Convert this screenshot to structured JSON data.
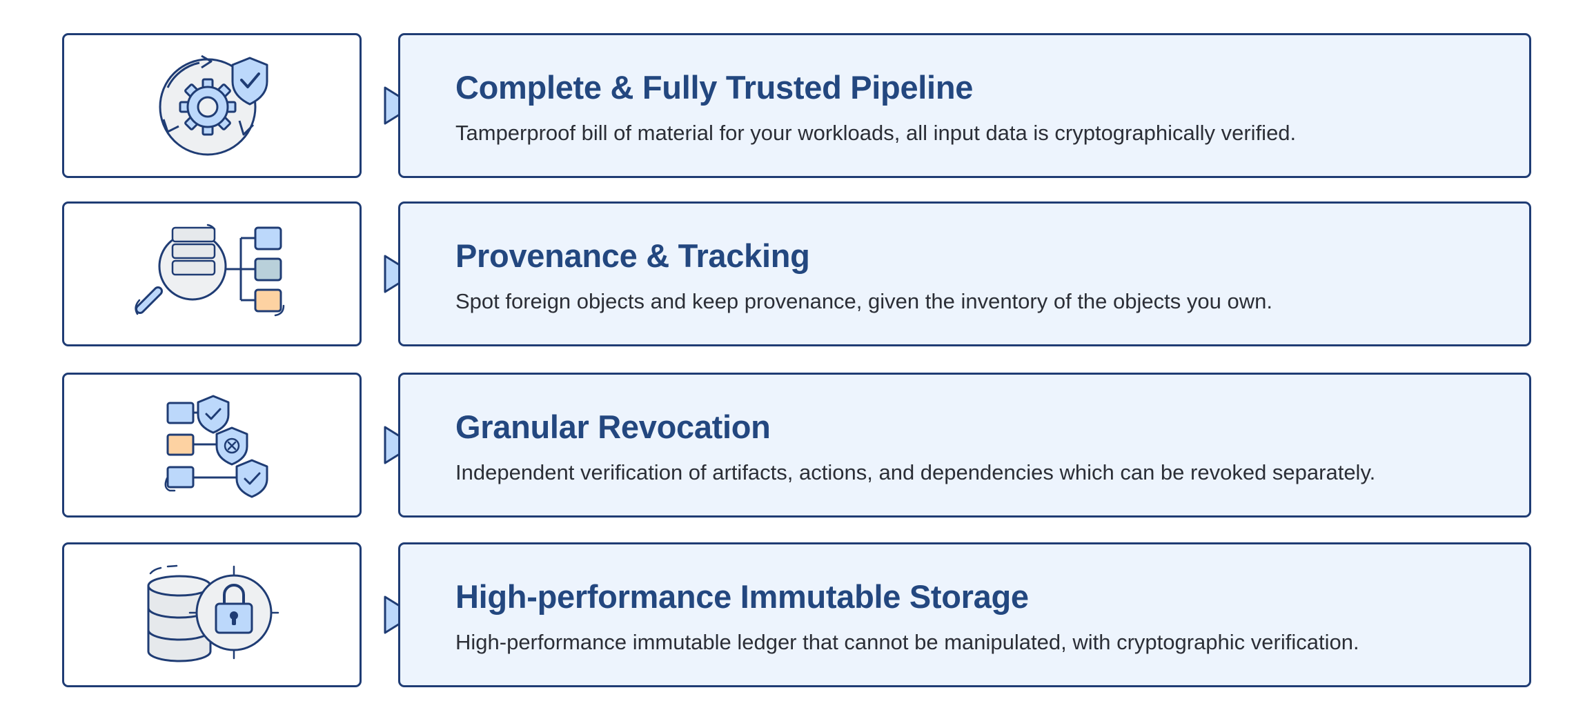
{
  "features": [
    {
      "title": "Complete & Fully Trusted Pipeline",
      "description": "Tamperproof bill of material for your workloads, all input data is cryptographically verified.",
      "icon": "gear-shield-cycle-icon"
    },
    {
      "title": "Provenance & Tracking",
      "description": "Spot foreign objects and keep provenance, given the inventory of the objects you own.",
      "icon": "magnifier-inventory-tree-icon"
    },
    {
      "title": "Granular Revocation",
      "description": "Independent verification of artifacts, actions, and dependencies which can be revoked separately.",
      "icon": "revocation-shields-icon"
    },
    {
      "title": "High-performance Immutable Storage",
      "description": "High-performance immutable ledger that cannot be manipulated, with cryptographic verification.",
      "icon": "database-lock-icon"
    }
  ],
  "colors": {
    "border": "#1f3c74",
    "panel_fill": "#edf4fd",
    "title": "#23477f",
    "text": "#2b2e36",
    "accent_blue": "#bcd8fb",
    "accent_orange": "#fdd2a2",
    "accent_teal": "#b9d0da"
  }
}
